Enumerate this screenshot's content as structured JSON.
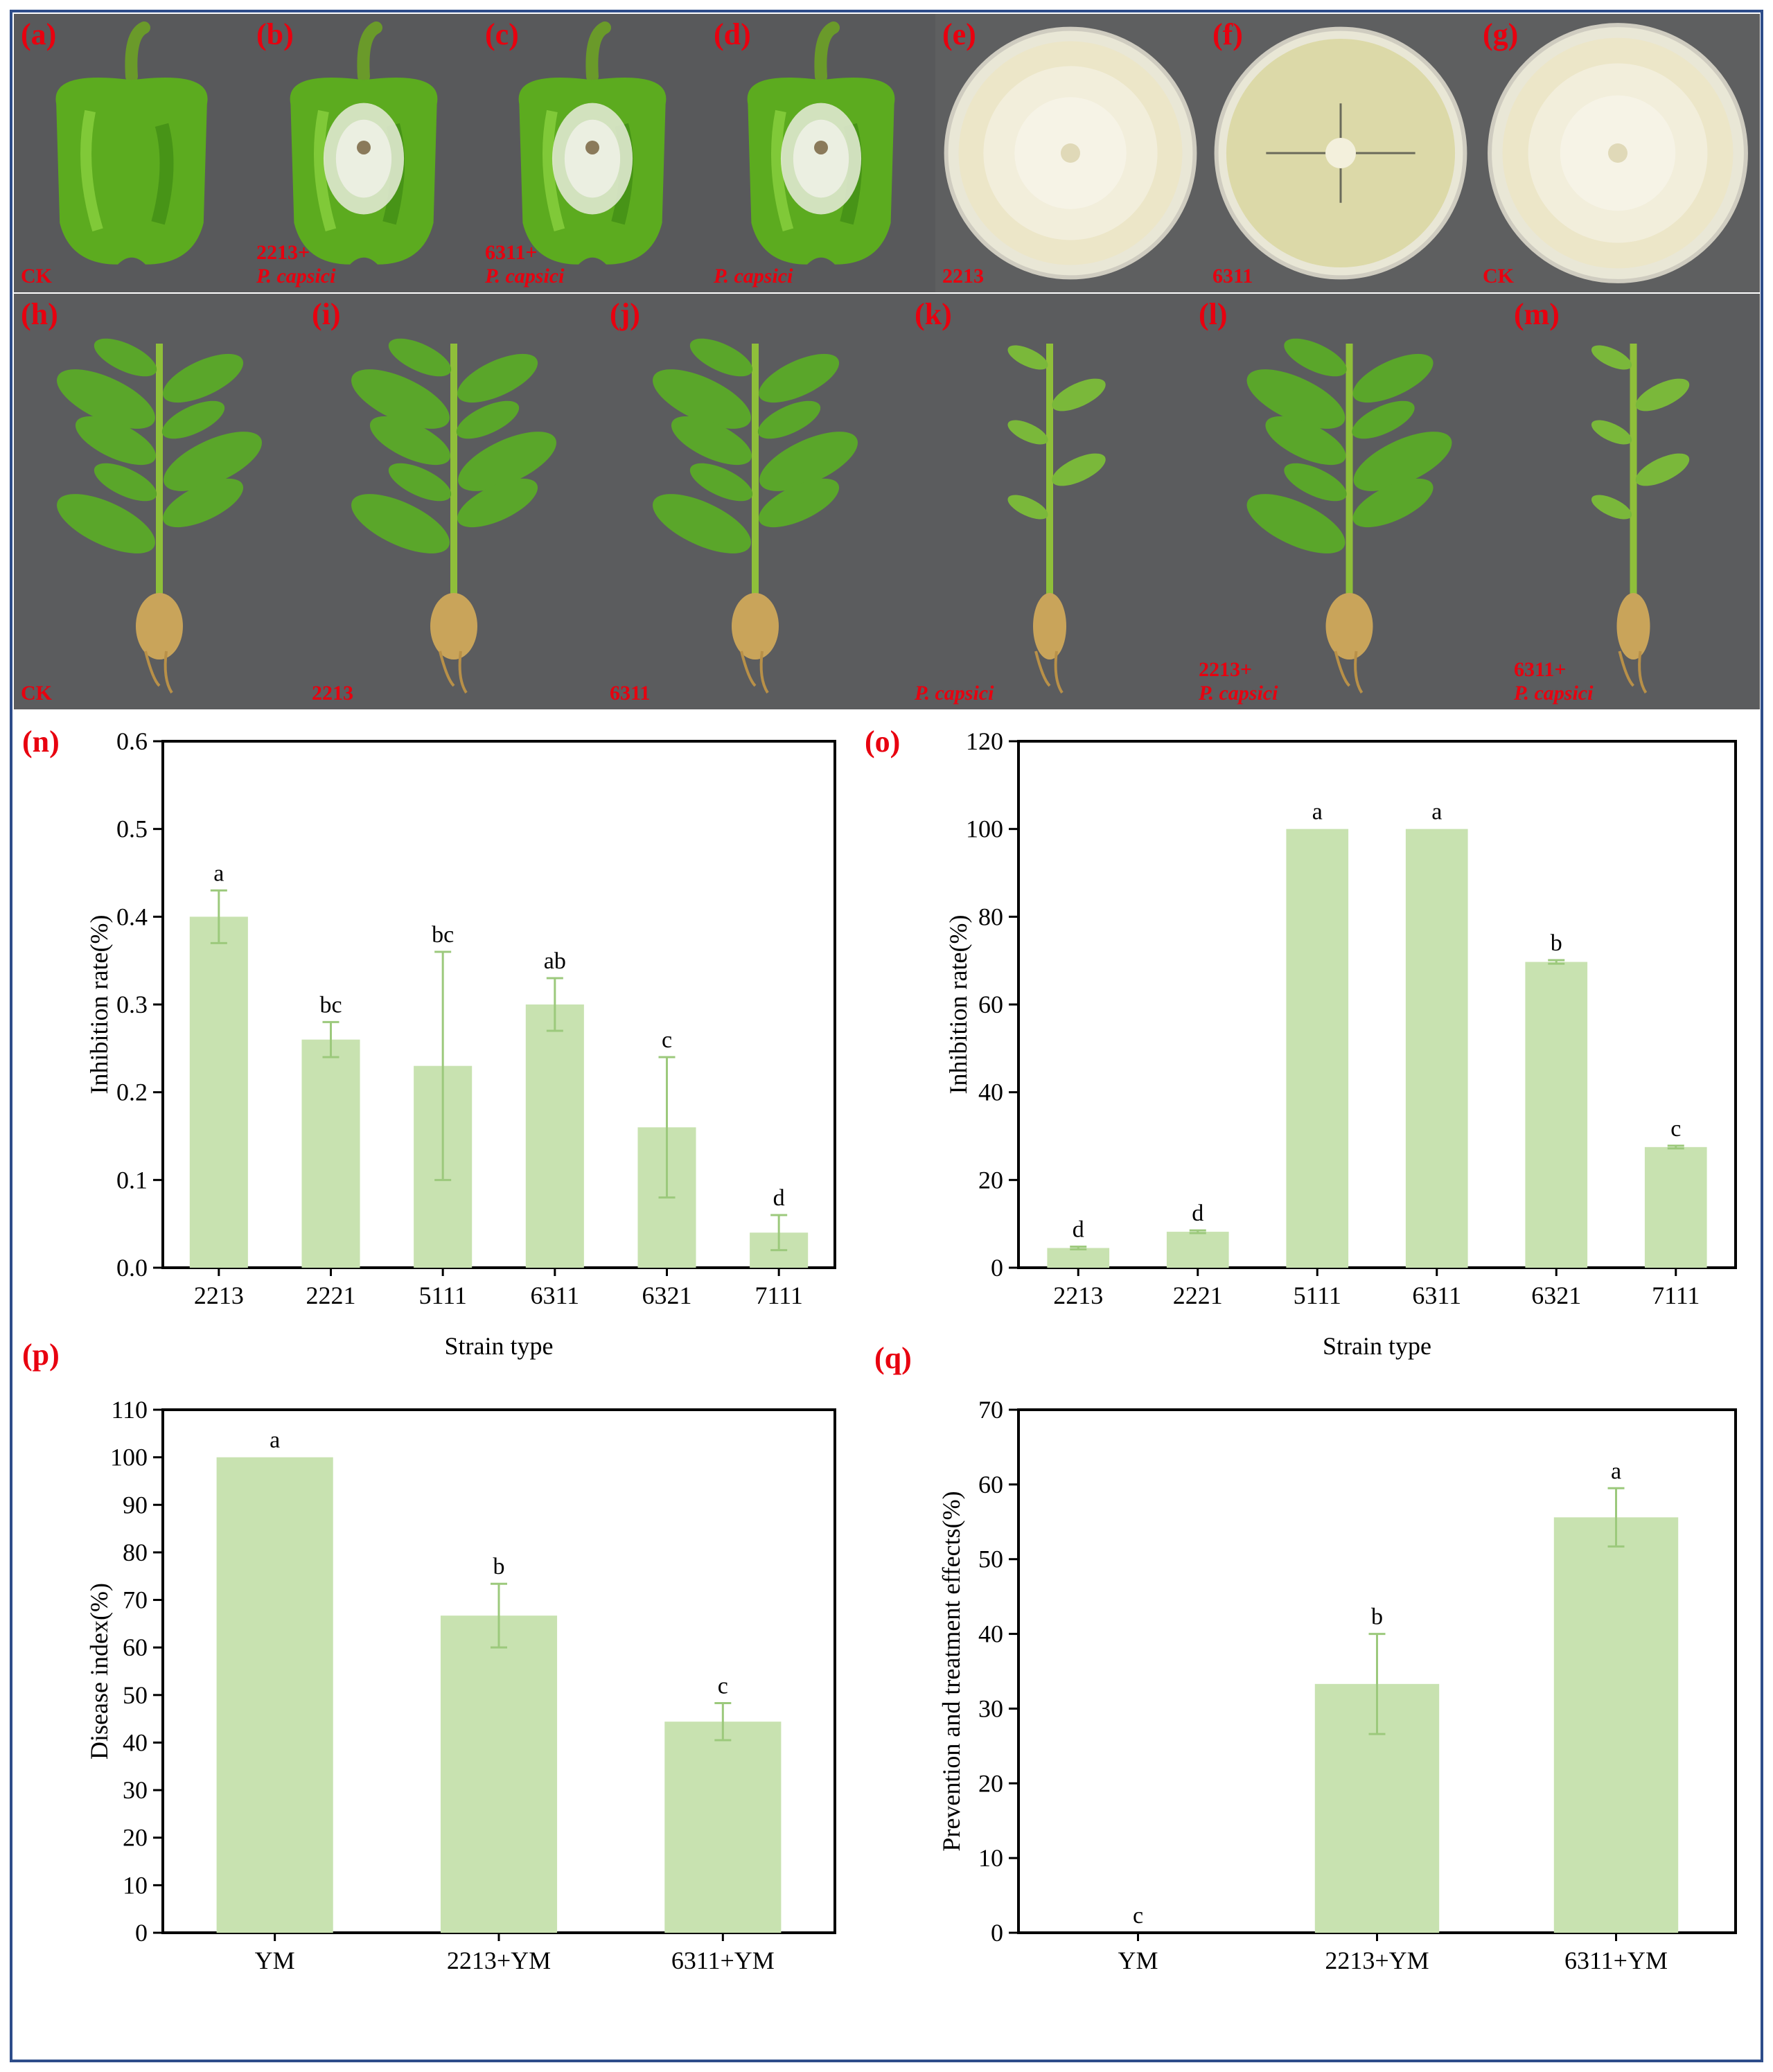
{
  "colors": {
    "label_red": "#e8000f",
    "bar_fill": "#c8e2b0",
    "error_bar": "#9cc97c",
    "frame": "#2e4d8a"
  },
  "photos": [
    {
      "id": "a",
      "panel": "(a)",
      "caption": "CK",
      "caption_italic": "",
      "kind": "pepper-ck"
    },
    {
      "id": "b",
      "panel": "(b)",
      "caption": "2213+",
      "caption_italic": "P. capsici",
      "kind": "pepper-infected"
    },
    {
      "id": "c",
      "panel": "(c)",
      "caption": "6311+",
      "caption_italic": "P. capsici",
      "kind": "pepper-infected"
    },
    {
      "id": "d",
      "panel": "(d)",
      "caption": "",
      "caption_italic": "P. capsici",
      "kind": "pepper-infected"
    },
    {
      "id": "e",
      "panel": "(e)",
      "caption": "2213",
      "caption_italic": "",
      "kind": "dish-full"
    },
    {
      "id": "f",
      "panel": "(f)",
      "caption": "6311",
      "caption_italic": "",
      "kind": "dish-inhibited"
    },
    {
      "id": "g",
      "panel": "(g)",
      "caption": "CK",
      "caption_italic": "",
      "kind": "dish-full"
    },
    {
      "id": "h",
      "panel": "(h)",
      "caption": "CK",
      "caption_italic": "",
      "kind": "plant-healthy"
    },
    {
      "id": "i",
      "panel": "(i)",
      "caption": "2213",
      "caption_italic": "",
      "kind": "plant-healthy"
    },
    {
      "id": "j",
      "panel": "(j)",
      "caption": "6311",
      "caption_italic": "",
      "kind": "plant-healthy"
    },
    {
      "id": "k",
      "panel": "(k)",
      "caption": "",
      "caption_italic": "P. capsici",
      "kind": "plant-sick"
    },
    {
      "id": "l",
      "panel": "(l)",
      "caption": "2213+",
      "caption_italic": "P. capsici",
      "kind": "plant-healthy"
    },
    {
      "id": "m",
      "panel": "(m)",
      "caption": "6311+",
      "caption_italic": "P. capsici",
      "kind": "plant-sick"
    }
  ],
  "chart_data": [
    {
      "id": "n",
      "panel": "(n)",
      "type": "bar",
      "categories": [
        "2213",
        "2221",
        "5111",
        "6311",
        "6321",
        "7111"
      ],
      "values": [
        0.4,
        0.26,
        0.23,
        0.3,
        0.16,
        0.04
      ],
      "errors": [
        0.03,
        0.02,
        0.13,
        0.03,
        0.08,
        0.02
      ],
      "letters": [
        "a",
        "bc",
        "bc",
        "ab",
        "c",
        "d"
      ],
      "ylim": [
        0,
        0.6
      ],
      "yticks": [
        "0.0",
        "0.1",
        "0.2",
        "0.3",
        "0.4",
        "0.5",
        "0.6"
      ],
      "ylabel": "Inhibition rate(%)",
      "xlabel": "Strain type"
    },
    {
      "id": "o",
      "panel": "(o)",
      "type": "bar",
      "categories": [
        "2213",
        "2221",
        "5111",
        "6311",
        "6321",
        "7111"
      ],
      "values": [
        4.5,
        8.2,
        100,
        100,
        69.7,
        27.5
      ],
      "errors": [
        0.3,
        0.3,
        0,
        0,
        0.4,
        0.3
      ],
      "letters": [
        "d",
        "d",
        "a",
        "a",
        "b",
        "c"
      ],
      "ylim": [
        0,
        120
      ],
      "yticks": [
        "0",
        "20",
        "40",
        "60",
        "80",
        "100",
        "120"
      ],
      "ylabel": "Inhibition rate(%)",
      "xlabel": "Strain type"
    },
    {
      "id": "p",
      "panel": "(p)",
      "type": "bar",
      "categories": [
        "YM",
        "2213+YM",
        "6311+YM"
      ],
      "values": [
        100,
        66.7,
        44.4
      ],
      "errors": [
        0,
        6.7,
        3.9
      ],
      "letters": [
        "a",
        "b",
        "c"
      ],
      "ylim": [
        0,
        110
      ],
      "yticks": [
        "0",
        "10",
        "20",
        "30",
        "40",
        "50",
        "60",
        "70",
        "80",
        "90",
        "100",
        "110"
      ],
      "ylabel": "Disease index(%)",
      "xlabel": ""
    },
    {
      "id": "q",
      "panel": "(q)",
      "type": "bar",
      "categories": [
        "YM",
        "2213+YM",
        "6311+YM"
      ],
      "values": [
        0,
        33.3,
        55.6
      ],
      "errors": [
        0,
        6.7,
        3.9
      ],
      "letters": [
        "c",
        "b",
        "a"
      ],
      "ylim": [
        0,
        70
      ],
      "yticks": [
        "0",
        "10",
        "20",
        "30",
        "40",
        "50",
        "60",
        "70"
      ],
      "ylabel": "Prevention and treatment effects(%)",
      "xlabel": ""
    }
  ]
}
